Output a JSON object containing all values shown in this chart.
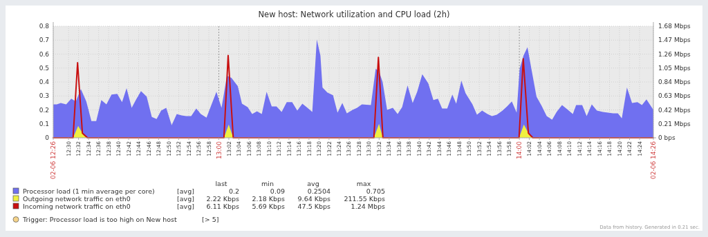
{
  "chart_data": {
    "type": "area",
    "title": "New host: Network utilization and CPU load (2h)",
    "xlim": [
      12.449,
      14.446
    ],
    "xticks": [
      {
        "value": 12.449,
        "label": "02-06 12:26"
      },
      {
        "value": 12.5,
        "label": "12:30"
      },
      {
        "value": 12.5333,
        "label": "12:32"
      },
      {
        "value": 12.5667,
        "label": "12:34"
      },
      {
        "value": 12.6,
        "label": "12:36"
      },
      {
        "value": 12.6333,
        "label": "12:38"
      },
      {
        "value": 12.6667,
        "label": "12:40"
      },
      {
        "value": 12.7,
        "label": "12:42"
      },
      {
        "value": 12.7333,
        "label": "12:44"
      },
      {
        "value": 12.7667,
        "label": "12:46"
      },
      {
        "value": 12.8,
        "label": "12:48"
      },
      {
        "value": 12.8333,
        "label": "12:50"
      },
      {
        "value": 12.8667,
        "label": "12:52"
      },
      {
        "value": 12.9,
        "label": "12:54"
      },
      {
        "value": 12.9333,
        "label": "12:56"
      },
      {
        "value": 12.9667,
        "label": "12:58"
      },
      {
        "value": 13,
        "label": "13:00"
      },
      {
        "value": 13.0333,
        "label": "13:02"
      },
      {
        "value": 13.0667,
        "label": "13:04"
      },
      {
        "value": 13.1,
        "label": "13:06"
      },
      {
        "value": 13.1333,
        "label": "13:08"
      },
      {
        "value": 13.1667,
        "label": "13:10"
      },
      {
        "value": 13.2,
        "label": "13:12"
      },
      {
        "value": 13.2333,
        "label": "13:14"
      },
      {
        "value": 13.2667,
        "label": "13:16"
      },
      {
        "value": 13.3,
        "label": "13:18"
      },
      {
        "value": 13.3333,
        "label": "13:20"
      },
      {
        "value": 13.3667,
        "label": "13:22"
      },
      {
        "value": 13.4,
        "label": "13:24"
      },
      {
        "value": 13.4333,
        "label": "13:26"
      },
      {
        "value": 13.4667,
        "label": "13:28"
      },
      {
        "value": 13.5,
        "label": "13:30"
      },
      {
        "value": 13.5333,
        "label": "13:32"
      },
      {
        "value": 13.5667,
        "label": "13:34"
      },
      {
        "value": 13.6,
        "label": "13:36"
      },
      {
        "value": 13.6333,
        "label": "13:38"
      },
      {
        "value": 13.6667,
        "label": "13:40"
      },
      {
        "value": 13.7,
        "label": "13:42"
      },
      {
        "value": 13.7333,
        "label": "13:44"
      },
      {
        "value": 13.7667,
        "label": "13:46"
      },
      {
        "value": 13.8,
        "label": "13:48"
      },
      {
        "value": 13.8333,
        "label": "13:50"
      },
      {
        "value": 13.8667,
        "label": "13:52"
      },
      {
        "value": 13.9,
        "label": "13:54"
      },
      {
        "value": 13.9333,
        "label": "13:56"
      },
      {
        "value": 13.9667,
        "label": "13:58"
      },
      {
        "value": 14,
        "label": "14:00"
      },
      {
        "value": 14.0333,
        "label": "14:02"
      },
      {
        "value": 14.0667,
        "label": "14:04"
      },
      {
        "value": 14.1,
        "label": "14:06"
      },
      {
        "value": 14.1333,
        "label": "14:08"
      },
      {
        "value": 14.1667,
        "label": "14:10"
      },
      {
        "value": 14.2,
        "label": "14:12"
      },
      {
        "value": 14.2333,
        "label": "14:14"
      },
      {
        "value": 14.2667,
        "label": "14:16"
      },
      {
        "value": 14.3,
        "label": "14:18"
      },
      {
        "value": 14.3333,
        "label": "14:20"
      },
      {
        "value": 14.3667,
        "label": "14:22"
      },
      {
        "value": 14.4,
        "label": "14:24"
      },
      {
        "value": 14.446,
        "label": "02-06 14:26"
      }
    ],
    "ylim": [
      0,
      0.8
    ],
    "yticks": [
      0,
      0.1,
      0.2,
      0.3,
      0.4,
      0.5,
      0.6,
      0.7,
      0.8
    ],
    "y2lim": [
      0,
      1.68
    ],
    "y2ticks": [
      {
        "value": 0,
        "label": "0 bps"
      },
      {
        "value": 0.21,
        "label": "0.21 Mbps"
      },
      {
        "value": 0.42,
        "label": "0.42 Mbps"
      },
      {
        "value": 0.63,
        "label": "0.63 Mbps"
      },
      {
        "value": 0.84,
        "label": "0.84 Mbps"
      },
      {
        "value": 1.05,
        "label": "1.05 Mbps"
      },
      {
        "value": 1.26,
        "label": "1.26 Mbps"
      },
      {
        "value": 1.47,
        "label": "1.47 Mbps"
      },
      {
        "value": 1.68,
        "label": "1.68 Mbps"
      }
    ],
    "grid": true,
    "legend": "bottom",
    "series": [
      {
        "name": "Processor load (1 min average per core)",
        "color": "#7070f0",
        "x": [
          12.449,
          12.461,
          12.474,
          12.492,
          12.509,
          12.524,
          12.541,
          12.559,
          12.576,
          12.592,
          12.609,
          12.626,
          12.643,
          12.662,
          12.678,
          12.693,
          12.71,
          12.725,
          12.741,
          12.76,
          12.777,
          12.793,
          12.808,
          12.825,
          12.843,
          12.86,
          12.876,
          12.891,
          12.908,
          12.925,
          12.94,
          12.959,
          12.975,
          12.992,
          13.009,
          13.027,
          13.042,
          13.063,
          13.077,
          13.096,
          13.111,
          13.127,
          13.143,
          13.159,
          13.176,
          13.192,
          13.209,
          13.226,
          13.244,
          13.261,
          13.278,
          13.295,
          13.311,
          13.326,
          13.338,
          13.345,
          13.361,
          13.38,
          13.395,
          13.411,
          13.426,
          13.445,
          13.46,
          13.476,
          13.506,
          13.522,
          13.533,
          13.545,
          13.56,
          13.579,
          13.595,
          13.61,
          13.628,
          13.645,
          13.66,
          13.677,
          13.697,
          13.714,
          13.729,
          13.743,
          13.76,
          13.777,
          13.79,
          13.807,
          13.821,
          13.844,
          13.859,
          13.876,
          13.894,
          13.909,
          13.925,
          13.944,
          13.959,
          13.975,
          13.991,
          14.001,
          14.014,
          14.027,
          14.04,
          14.057,
          14.074,
          14.091,
          14.109,
          14.124,
          14.142,
          14.159,
          14.178,
          14.189,
          14.209,
          14.224,
          14.241,
          14.258,
          14.278,
          14.295,
          14.312,
          14.328,
          14.341,
          14.358,
          14.375,
          14.393,
          14.408,
          14.423,
          14.446
        ],
        "values": [
          0.24,
          0.24,
          0.25,
          0.24,
          0.28,
          0.26,
          0.35,
          0.26,
          0.12,
          0.12,
          0.27,
          0.24,
          0.31,
          0.315,
          0.255,
          0.355,
          0.215,
          0.275,
          0.335,
          0.295,
          0.15,
          0.135,
          0.195,
          0.215,
          0.09,
          0.17,
          0.16,
          0.155,
          0.155,
          0.21,
          0.17,
          0.145,
          0.235,
          0.33,
          0.215,
          0.445,
          0.43,
          0.37,
          0.245,
          0.22,
          0.17,
          0.19,
          0.17,
          0.33,
          0.225,
          0.225,
          0.185,
          0.255,
          0.255,
          0.195,
          0.245,
          0.215,
          0.185,
          0.705,
          0.59,
          0.36,
          0.325,
          0.305,
          0.18,
          0.25,
          0.175,
          0.2,
          0.215,
          0.24,
          0.235,
          0.495,
          0.475,
          0.4,
          0.2,
          0.215,
          0.17,
          0.22,
          0.375,
          0.25,
          0.33,
          0.455,
          0.39,
          0.27,
          0.28,
          0.21,
          0.21,
          0.31,
          0.245,
          0.41,
          0.32,
          0.24,
          0.165,
          0.195,
          0.17,
          0.155,
          0.165,
          0.195,
          0.225,
          0.26,
          0.18,
          0.495,
          0.59,
          0.65,
          0.495,
          0.295,
          0.23,
          0.155,
          0.13,
          0.185,
          0.235,
          0.205,
          0.17,
          0.235,
          0.235,
          0.155,
          0.24,
          0.195,
          0.185,
          0.18,
          0.175,
          0.175,
          0.14,
          0.36,
          0.25,
          0.255,
          0.235,
          0.275,
          0.2
        ]
      },
      {
        "name": "Outgoing network traffic on eth0",
        "axis": "y2",
        "color": "#f0f040",
        "x": [
          12.449,
          12.515,
          12.532,
          12.55,
          12.563,
          13.017,
          13.033,
          13.048,
          13.516,
          13.533,
          13.546,
          13.999,
          14.015,
          14.035,
          14.045,
          14.446
        ],
        "values": [
          0,
          0,
          0.18,
          0.04,
          0,
          0,
          0.2,
          0,
          0,
          0.21,
          0,
          0,
          0.2,
          0.03,
          0,
          0
        ]
      },
      {
        "name": "Incoming network traffic on eth0",
        "type": "line",
        "axis": "y2",
        "color": "#c81010",
        "x": [
          12.449,
          12.515,
          12.53,
          12.546,
          12.563,
          13.017,
          13.031,
          13.048,
          13.516,
          13.531,
          13.546,
          13.999,
          14.013,
          14.03,
          14.045,
          14.446
        ],
        "values": [
          0,
          0,
          1.13,
          0.07,
          0,
          0,
          1.24,
          0,
          0,
          1.21,
          0,
          0,
          1.19,
          0.07,
          0,
          0
        ]
      }
    ],
    "annotations": [
      "last",
      "min",
      "avg",
      "max",
      "[avg]",
      "0.2",
      "0.09",
      "0.2504",
      "0.705",
      "[avg]",
      "2.22 Kbps",
      "2.18 Kbps",
      "9.64 Kbps",
      "211.55 Kbps",
      "[avg]",
      "6.11 Kbps",
      "5.69 Kbps",
      "47.5 Kbps",
      "1.24 Mbps",
      "Trigger: Processor load is too high on New host",
      "[> 5]",
      "Data from history. Generated in 0.21 sec."
    ]
  }
}
